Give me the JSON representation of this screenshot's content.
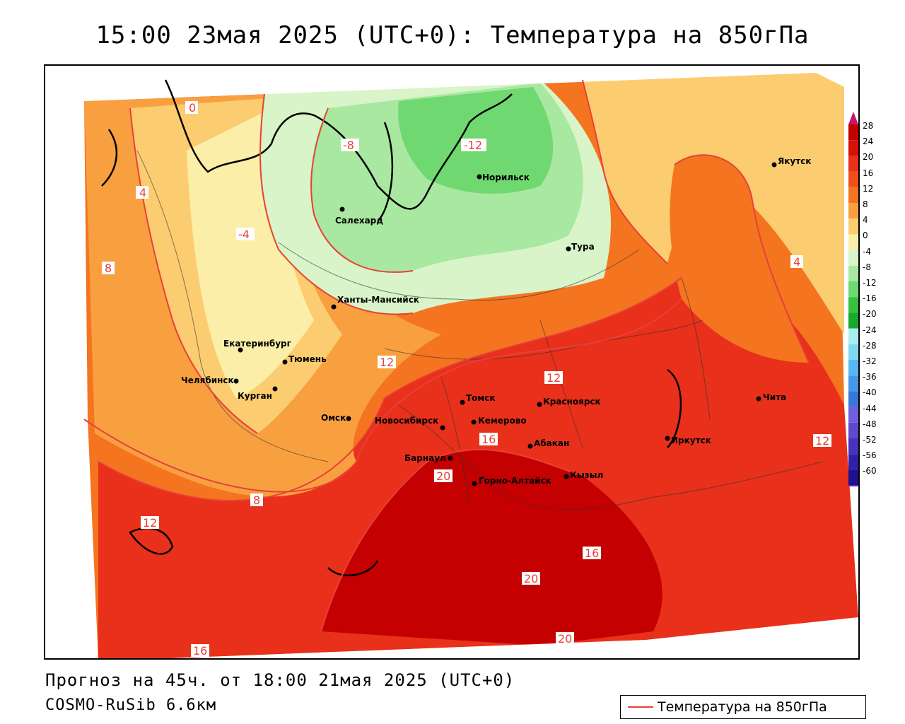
{
  "title": "15:00 23мая 2025 (UTC+0): Температура на 850гПа",
  "footer": {
    "forecast": "Прогноз на 45ч. от 18:00 21мая 2025 (UTC+0)",
    "model": "COSMO-RuSib 6.6км"
  },
  "legend": {
    "label": "Температура на 850гПа",
    "line_color": "#e8403a"
  },
  "colorbar": {
    "ticks": [
      "28",
      "24",
      "20",
      "16",
      "12",
      "8",
      "4",
      "0",
      "-4",
      "-8",
      "-12",
      "-16",
      "-20",
      "-24",
      "-28",
      "-32",
      "-36",
      "-40",
      "-44",
      "-48",
      "-52",
      "-56",
      "-60"
    ],
    "colors": [
      "#c40000",
      "#d8100a",
      "#e8301a",
      "#f05018",
      "#f47420",
      "#f8a040",
      "#fccc70",
      "#fbeea8",
      "#d8f4c8",
      "#a8e8a0",
      "#70d870",
      "#38c040",
      "#18a830",
      "#a8eef0",
      "#80d8f0",
      "#58b8f0",
      "#4898e8",
      "#3878d8",
      "#7060e0",
      "#6048d0",
      "#4830c0",
      "#3020a8",
      "#201090"
    ],
    "top_arrow_color": "#c0186a",
    "bottom_arrow_color": "#7020c0"
  },
  "cities": [
    {
      "name": "Норильск"
    },
    {
      "name": "Салехард"
    },
    {
      "name": "Тура"
    },
    {
      "name": "Якутск"
    },
    {
      "name": "Ханты-Мансийск"
    },
    {
      "name": "Екатеринбург"
    },
    {
      "name": "Тюмень"
    },
    {
      "name": "Челябинск"
    },
    {
      "name": "Курган"
    },
    {
      "name": "Омск"
    },
    {
      "name": "Томск"
    },
    {
      "name": "Красноярск"
    },
    {
      "name": "Новосибирск"
    },
    {
      "name": "Кемерово"
    },
    {
      "name": "Абакан"
    },
    {
      "name": "Барнаул"
    },
    {
      "name": "Горно-Алтайск"
    },
    {
      "name": "Кызыл"
    },
    {
      "name": "Иркутск"
    },
    {
      "name": "Чита"
    }
  ],
  "isolines": [
    "0",
    "4",
    "-4",
    "-8",
    "-12",
    "8",
    "12",
    "16",
    "20"
  ]
}
